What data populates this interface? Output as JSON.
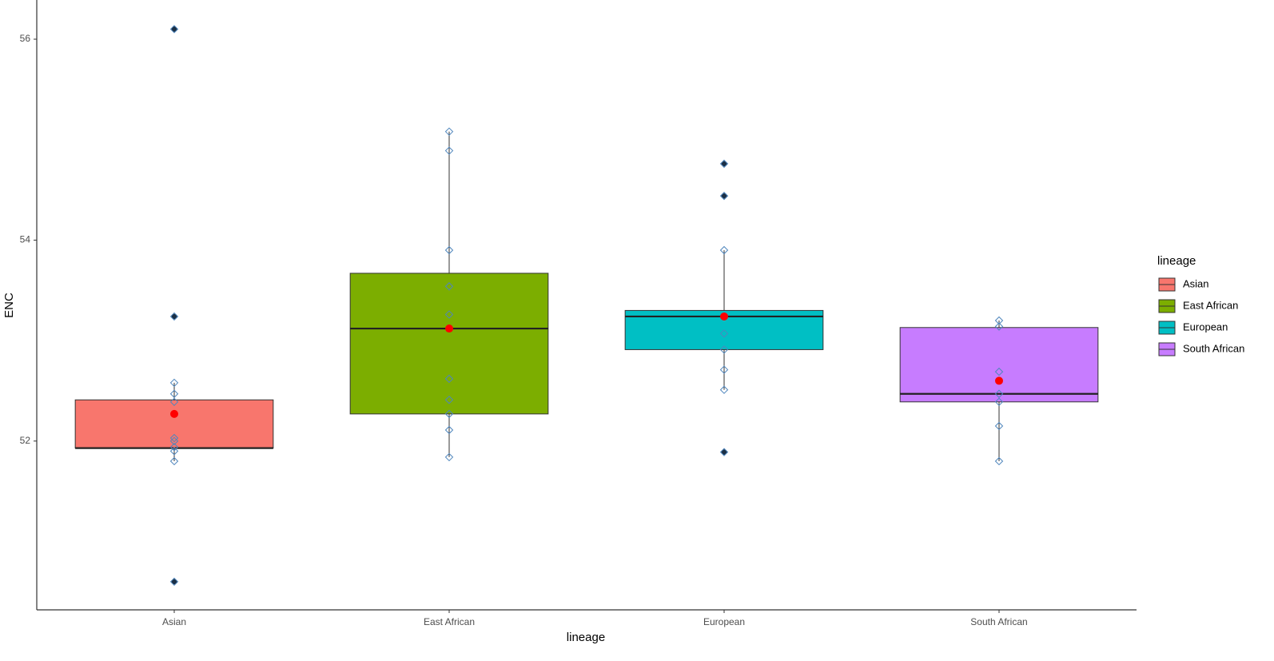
{
  "chart_data": {
    "type": "boxplot",
    "y_label": "ENC",
    "x_label": "lineage",
    "legend_title": "lineage",
    "legend_position": "right",
    "ylim": [
      50.32,
      56.39
    ],
    "yticks": [
      52,
      54,
      56
    ],
    "categories": [
      "Asian",
      "East African",
      "European",
      "South African"
    ],
    "series": [
      {
        "name": "Asian",
        "color": "#F8766D",
        "q1": 51.93,
        "median": 51.93,
        "q3": 52.41,
        "whisker_low": 51.8,
        "whisker_high": 52.58,
        "mean": 52.27,
        "outliers": [
          56.1,
          53.24,
          50.6
        ],
        "points": [
          52.58,
          52.47,
          52.39,
          52.03,
          52.0,
          51.94,
          51.9,
          51.8,
          56.1,
          53.24,
          50.6
        ]
      },
      {
        "name": "East African",
        "color": "#7CAE00",
        "q1": 52.27,
        "median": 53.12,
        "q3": 53.67,
        "whisker_low": 51.84,
        "whisker_high": 55.08,
        "mean": 53.12,
        "outliers": [],
        "points": [
          55.08,
          54.89,
          53.9,
          53.54,
          53.26,
          52.62,
          52.41,
          52.27,
          52.11,
          51.84
        ]
      },
      {
        "name": "European",
        "color": "#00BFC4",
        "q1": 52.91,
        "median": 53.24,
        "q3": 53.3,
        "whisker_low": 52.51,
        "whisker_high": 53.9,
        "mean": 53.24,
        "outliers": [
          54.76,
          54.44,
          51.89
        ],
        "points": [
          53.9,
          53.24,
          53.07,
          52.91,
          52.71,
          52.51,
          54.76,
          54.44,
          51.89
        ]
      },
      {
        "name": "South African",
        "color": "#C77CFF",
        "q1": 52.39,
        "median": 52.47,
        "q3": 53.13,
        "whisker_low": 51.8,
        "whisker_high": 53.2,
        "mean": 52.6,
        "outliers": [],
        "points": [
          53.2,
          53.14,
          52.69,
          52.47,
          52.39,
          52.15,
          51.8
        ]
      }
    ]
  }
}
